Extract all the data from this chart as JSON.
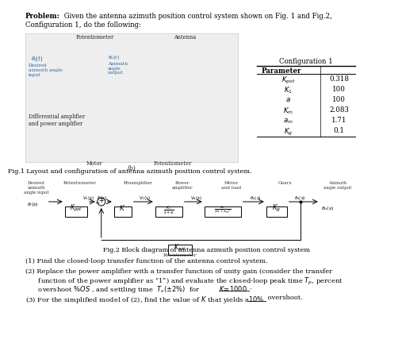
{
  "bg_color": "#ffffff",
  "text_color": "#000000",
  "fig1_caption": "Fig.1 Layout and configuration of antenna azimuth position control system.",
  "fig2_caption": "Fig.2 Block diagram of antenna azimuth position control system",
  "table_title": "Configuration 1",
  "table_rows": [
    [
      "$K_{pot}$",
      "0.318"
    ],
    [
      "$K_1$",
      "100"
    ],
    [
      "$a$",
      "100"
    ],
    [
      "$K_m$",
      "2.083"
    ],
    [
      "$a_m$",
      "1.71"
    ],
    [
      "$K_g$",
      "0.1"
    ]
  ],
  "q1": "(1) Find the closed-loop transfer function of the antenna control system.",
  "q2a": "(2) Replace the power amplifier with a transfer function of unity gain (consider the transfer",
  "q2b": "      function of the power amplifier as “1”) and evaluate the closed-loop peak time $T_p$, percent",
  "q2c": "      overshoot $\\%OS$ , and settling time  $T_s(\\pm2\\%)$  for $K\\!=\\!1000$.",
  "q3": "(3) For the simplified model of (2), find the value of $K$ that yields a $10\\%$ overshoot."
}
